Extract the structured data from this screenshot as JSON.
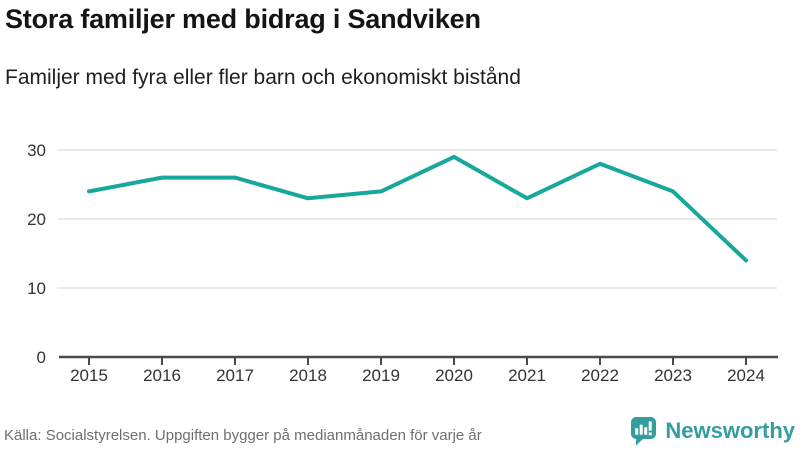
{
  "header": {
    "title": "Stora familjer med bidrag i Sandviken",
    "subtitle": "Familjer med fyra eller fler barn och ekonomiskt bistånd"
  },
  "chart_data": {
    "type": "line",
    "title": "Stora familjer med bidrag i Sandviken",
    "subtitle": "Familjer med fyra eller fler barn och ekonomiskt bistånd",
    "categories": [
      "2015",
      "2016",
      "2017",
      "2018",
      "2019",
      "2020",
      "2021",
      "2022",
      "2023",
      "2024"
    ],
    "series": [
      {
        "name": "Familjer med fyra eller fler barn och ekonomiskt bistånd",
        "values": [
          24,
          26,
          26,
          23,
          24,
          29,
          23,
          28,
          24,
          14
        ]
      }
    ],
    "ylim": [
      0,
      30
    ],
    "yticks": [
      0,
      10,
      20,
      30
    ],
    "grid": true,
    "legend_position": "none",
    "line_color": "#17a79b",
    "grid_color": "#e3e3e3",
    "axis_color": "#4a4a4a",
    "tick_label_color": "#333333"
  },
  "footer": {
    "source": "Källa: Socialstyrelsen. Uppgiften bygger på medianmånaden för varje år",
    "brand": "Newsworthy",
    "brand_color": "#339e9d"
  }
}
